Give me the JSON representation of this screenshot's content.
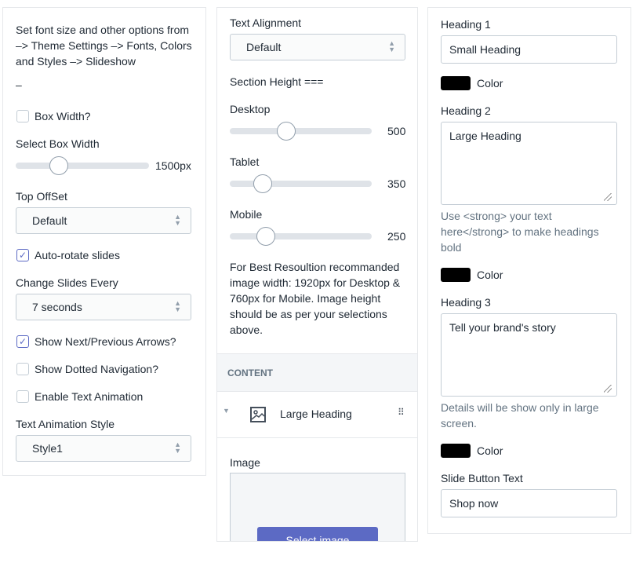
{
  "left": {
    "info": "Set font size and other options from –> Theme Settings –> Fonts, Colors and Styles –> Slideshow",
    "dash": "–",
    "box_width_label": "Box Width?",
    "box_width_checked": false,
    "select_box_width_label": "Select Box Width",
    "box_width_value": "1500px",
    "box_width_slider_fraction": 0.32,
    "top_offset_label": "Top OffSet",
    "top_offset_value": "Default",
    "auto_rotate_label": "Auto-rotate slides",
    "auto_rotate_checked": true,
    "change_every_label": "Change Slides Every",
    "change_every_value": "7 seconds",
    "arrows_label": "Show Next/Previous Arrows?",
    "arrows_checked": true,
    "dots_label": "Show Dotted Navigation?",
    "dots_checked": false,
    "anim_label": "Enable Text Animation",
    "anim_checked": false,
    "anim_style_label": "Text Animation Style",
    "anim_style_value": "Style1"
  },
  "middle": {
    "align_label": "Text Alignment",
    "align_value": "Default",
    "section_height_label": "Section Height ===",
    "desktop_label": "Desktop",
    "desktop_value": "500",
    "tablet_label": "Tablet",
    "tablet_value": "350",
    "mobile_label": "Mobile",
    "mobile_value": "250",
    "note": "For Best Resoultion recommanded image width: 1920px for Desktop & 760px for Mobile. Image height should be as per your selections above.",
    "content_header": "CONTENT",
    "block_title": "Large Heading",
    "image_label": "Image",
    "select_image": "Select image"
  },
  "right": {
    "h1_label": "Heading 1",
    "h1_value": "Small Heading",
    "color_label": "Color",
    "heading_color": "#000000",
    "h2_label": "Heading 2",
    "h2_value": "Large Heading",
    "h2_help": "Use <strong> your text here</strong> to make headings bold",
    "h3_label": "Heading 3",
    "h3_value": "Tell your brand's story",
    "h3_help": "Details will be show only in large screen.",
    "button_text_label": "Slide Button Text",
    "button_text_value": "Shop now"
  },
  "accent": "#5c6ac4"
}
